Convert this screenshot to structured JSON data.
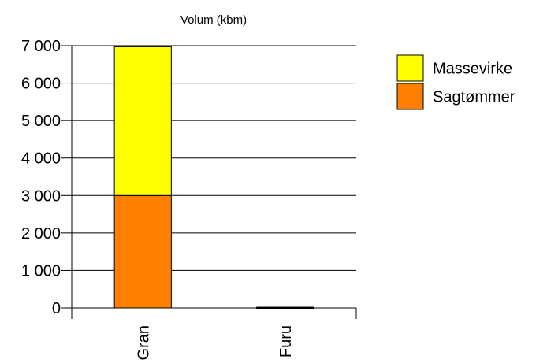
{
  "chart_data": {
    "type": "bar",
    "stacked": true,
    "title": "Volum (kbm)",
    "xlabel": "",
    "ylabel": "",
    "categories": [
      "Gran",
      "Furu"
    ],
    "series": [
      {
        "name": "Sagtømmer",
        "values": [
          3000,
          20
        ],
        "color": "#ff8000"
      },
      {
        "name": "Massevirke",
        "values": [
          3970,
          0
        ],
        "color": "#ffff00"
      }
    ],
    "ylim": [
      0,
      7000
    ],
    "yticks": [
      0,
      1000,
      2000,
      3000,
      4000,
      5000,
      6000,
      7000
    ],
    "ytick_labels": [
      "0",
      "1 000",
      "2 000",
      "3 000",
      "4 000",
      "5 000",
      "6 000",
      "7 000"
    ],
    "grid": "horizontal",
    "legend_position": "right",
    "legend": [
      "Massevirke",
      "Sagtømmer"
    ]
  }
}
